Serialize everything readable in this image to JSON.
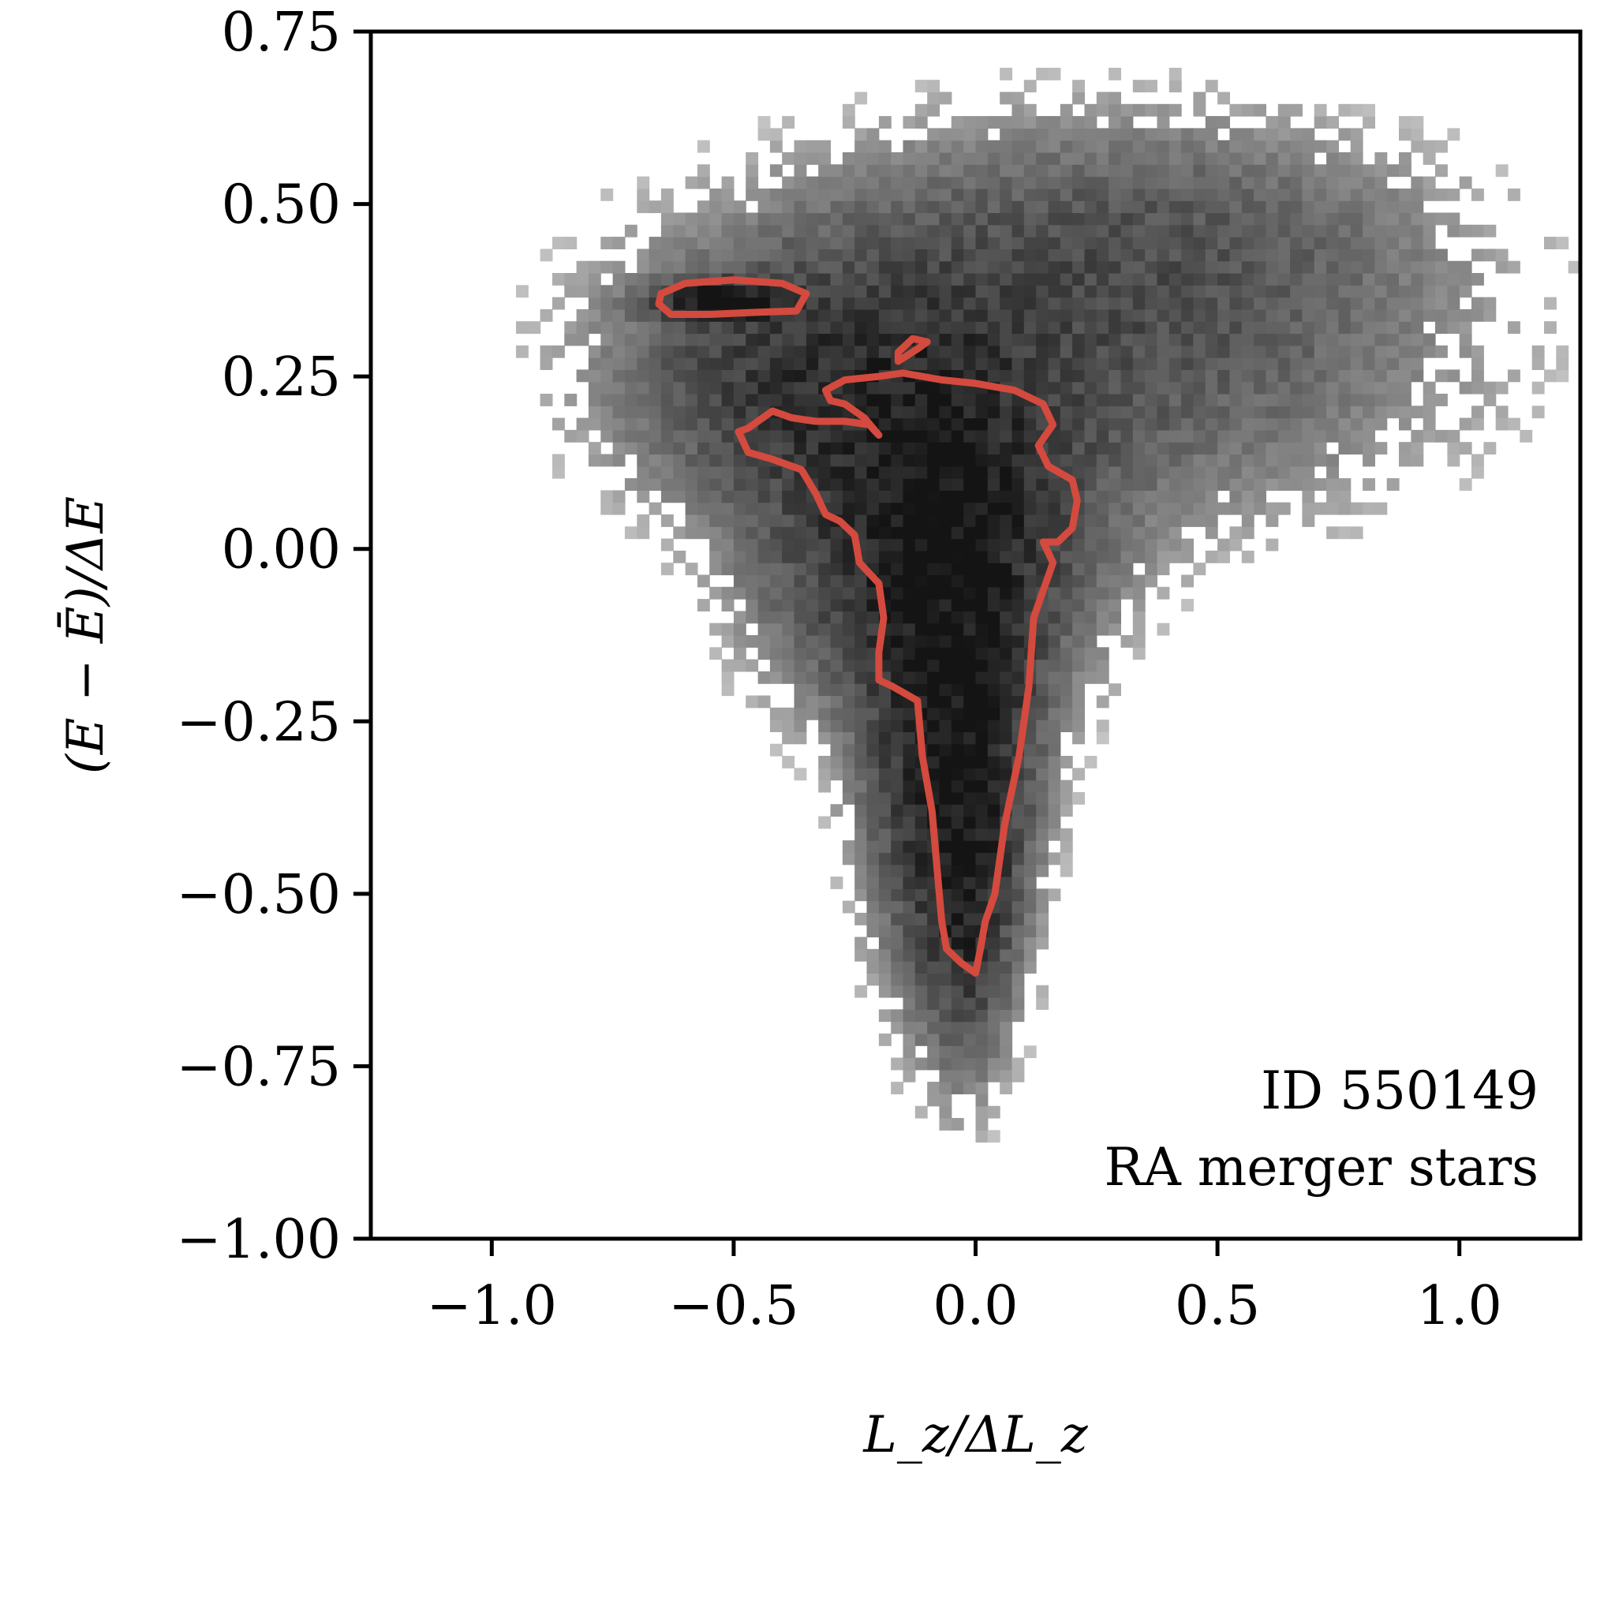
{
  "chart_data": {
    "type": "heatmap",
    "title": "",
    "xlabel": "L_z/ΔL_z",
    "ylabel": "(E − Ē)/ΔE",
    "xlim": [
      -1.25,
      1.25
    ],
    "ylim": [
      -1.0,
      0.75
    ],
    "xticks": [
      -1.0,
      -0.5,
      0.0,
      0.5,
      1.0
    ],
    "xtick_labels": [
      "−1.0",
      "−0.5",
      "0.0",
      "0.5",
      "1.0"
    ],
    "yticks": [
      -1.0,
      -0.75,
      -0.5,
      -0.25,
      0.0,
      0.25,
      0.5,
      0.75
    ],
    "ytick_labels": [
      "−1.00",
      "−0.75",
      "−0.50",
      "−0.25",
      "0.00",
      "0.25",
      "0.50",
      "0.75"
    ],
    "annotations": [
      "ID 550149",
      "RA merger stars"
    ],
    "grid": false,
    "colors": {
      "density": "#000000",
      "contour": "#d44a3e"
    },
    "density_components": [
      {
        "x": -0.05,
        "y": -0.2,
        "sx": 0.09,
        "sy": 0.22,
        "w": 1.0
      },
      {
        "x": -0.02,
        "y": -0.45,
        "sx": 0.05,
        "sy": 0.14,
        "w": 0.6
      },
      {
        "x": -0.1,
        "y": 0.05,
        "sx": 0.18,
        "sy": 0.15,
        "w": 0.75
      },
      {
        "x": -0.52,
        "y": 0.36,
        "sx": 0.08,
        "sy": 0.015,
        "w": 1.1
      },
      {
        "x": -0.35,
        "y": 0.25,
        "sx": 0.2,
        "sy": 0.1,
        "w": 0.35
      },
      {
        "x": 0.15,
        "y": 0.3,
        "sx": 0.45,
        "sy": 0.15,
        "w": 0.22
      },
      {
        "x": 0.35,
        "y": 0.45,
        "sx": 0.35,
        "sy": 0.1,
        "w": 0.12
      }
    ],
    "contours": [
      {
        "name": "",
        "points": [
          [
            -0.65,
            0.37
          ],
          [
            -0.6,
            0.385
          ],
          [
            -0.5,
            0.39
          ],
          [
            -0.4,
            0.385
          ],
          [
            -0.35,
            0.37
          ],
          [
            -0.37,
            0.345
          ],
          [
            -0.45,
            0.343
          ],
          [
            -0.55,
            0.34
          ],
          [
            -0.63,
            0.34
          ],
          [
            -0.655,
            0.355
          ],
          [
            -0.65,
            0.37
          ]
        ]
      },
      {
        "name": "",
        "points": [
          [
            -0.16,
            0.272
          ],
          [
            -0.12,
            0.29
          ],
          [
            -0.1,
            0.3
          ],
          [
            -0.13,
            0.305
          ],
          [
            -0.16,
            0.285
          ],
          [
            -0.16,
            0.272
          ]
        ]
      },
      {
        "name": "",
        "points": [
          [
            -0.2,
            0.165
          ],
          [
            -0.22,
            0.18
          ],
          [
            -0.27,
            0.185
          ],
          [
            -0.33,
            0.185
          ],
          [
            -0.38,
            0.19
          ],
          [
            -0.42,
            0.2
          ],
          [
            -0.47,
            0.175
          ],
          [
            -0.49,
            0.17
          ],
          [
            -0.47,
            0.14
          ],
          [
            -0.42,
            0.13
          ],
          [
            -0.36,
            0.115
          ],
          [
            -0.33,
            0.08
          ],
          [
            -0.31,
            0.05
          ],
          [
            -0.28,
            0.04
          ],
          [
            -0.25,
            0.02
          ],
          [
            -0.24,
            -0.02
          ],
          [
            -0.2,
            -0.05
          ],
          [
            -0.19,
            -0.1
          ],
          [
            -0.2,
            -0.15
          ],
          [
            -0.2,
            -0.19
          ],
          [
            -0.17,
            -0.2
          ],
          [
            -0.12,
            -0.22
          ],
          [
            -0.11,
            -0.3
          ],
          [
            -0.09,
            -0.38
          ],
          [
            -0.08,
            -0.46
          ],
          [
            -0.07,
            -0.54
          ],
          [
            -0.06,
            -0.58
          ],
          [
            -0.03,
            -0.6
          ],
          [
            0.0,
            -0.615
          ],
          [
            0.01,
            -0.58
          ],
          [
            0.02,
            -0.54
          ],
          [
            0.04,
            -0.5
          ],
          [
            0.06,
            -0.4
          ],
          [
            0.09,
            -0.3
          ],
          [
            0.11,
            -0.2
          ],
          [
            0.12,
            -0.1
          ],
          [
            0.14,
            -0.06
          ],
          [
            0.16,
            -0.02
          ],
          [
            0.14,
            0.01
          ],
          [
            0.17,
            0.01
          ],
          [
            0.2,
            0.03
          ],
          [
            0.21,
            0.07
          ],
          [
            0.2,
            0.1
          ],
          [
            0.15,
            0.12
          ],
          [
            0.13,
            0.15
          ],
          [
            0.16,
            0.18
          ],
          [
            0.14,
            0.21
          ],
          [
            0.08,
            0.23
          ],
          [
            0.0,
            0.24
          ],
          [
            -0.07,
            0.245
          ],
          [
            -0.15,
            0.255
          ],
          [
            -0.2,
            0.25
          ],
          [
            -0.27,
            0.245
          ],
          [
            -0.31,
            0.23
          ],
          [
            -0.3,
            0.215
          ],
          [
            -0.27,
            0.21
          ],
          [
            -0.25,
            0.2
          ],
          [
            -0.23,
            0.19
          ],
          [
            -0.2,
            0.165
          ]
        ]
      }
    ]
  }
}
